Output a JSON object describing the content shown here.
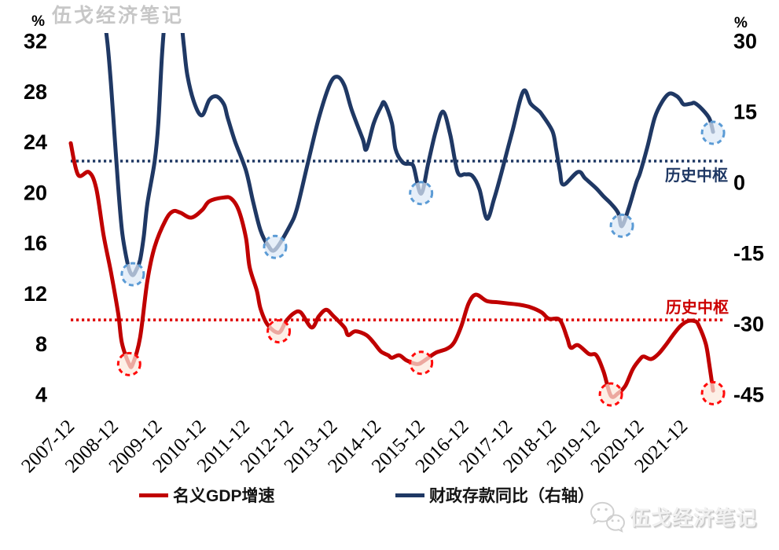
{
  "watermarks": {
    "top": "伍戈经济笔记",
    "bottom": "伍戈经济笔记"
  },
  "legend": [
    {
      "label": "名义GDP增速",
      "color": "#C00000"
    },
    {
      "label": "财政存款同比（右轴）",
      "color": "#1F3864"
    }
  ],
  "annotations": {
    "blue_center": {
      "label": "历史中枢",
      "axis": "right",
      "value": 4.5
    },
    "red_center": {
      "label": "历史中枢",
      "axis": "left",
      "value": 9.9
    }
  },
  "chart_data": {
    "type": "line",
    "title": "",
    "grid": "off",
    "x_axis": {
      "tick_labels": [
        "2007-12",
        "2008-12",
        "2009-12",
        "2010-12",
        "2011-12",
        "2012-12",
        "2013-12",
        "2014-12",
        "2015-12",
        "2016-12",
        "2017-12",
        "2018-12",
        "2019-12",
        "2020-12",
        "2021-12"
      ],
      "start": "2007-12",
      "end": "2022-08"
    },
    "left_axis": {
      "unit": "%",
      "ticks": [
        32,
        28,
        24,
        20,
        16,
        12,
        8,
        4
      ],
      "range": [
        4,
        32
      ]
    },
    "right_axis": {
      "unit": "%",
      "ticks": [
        30,
        15,
        0,
        -15,
        -30,
        -45
      ],
      "range": [
        -45,
        30
      ]
    },
    "center_lines": [
      {
        "label": "历史中枢",
        "axis": "right",
        "value": 4.5,
        "color": "#1F3864"
      },
      {
        "label": "历史中枢",
        "axis": "left",
        "value": 9.9,
        "color": "#E00000"
      }
    ],
    "series": [
      {
        "name": "名义GDP增速",
        "axis": "left",
        "color": "#C00000",
        "width": 5,
        "points": [
          [
            "2007-12",
            23.9
          ],
          [
            "2008-02",
            21.4
          ],
          [
            "2008-05",
            21.6
          ],
          [
            "2008-07",
            20.3
          ],
          [
            "2008-09",
            16.6
          ],
          [
            "2008-11",
            13.7
          ],
          [
            "2009-01",
            10.4
          ],
          [
            "2009-02",
            8.1
          ],
          [
            "2009-04",
            6.4
          ],
          [
            "2009-05",
            6.4
          ],
          [
            "2009-07",
            8.5
          ],
          [
            "2009-09",
            13.0
          ],
          [
            "2009-11",
            15.7
          ],
          [
            "2010-02",
            17.8
          ],
          [
            "2010-04",
            18.5
          ],
          [
            "2010-06",
            18.4
          ],
          [
            "2010-09",
            18.0
          ],
          [
            "2010-12",
            18.6
          ],
          [
            "2011-02",
            19.3
          ],
          [
            "2011-06",
            19.6
          ],
          [
            "2011-08",
            19.5
          ],
          [
            "2011-10",
            18.6
          ],
          [
            "2011-12",
            16.4
          ],
          [
            "2012-01",
            14.1
          ],
          [
            "2012-03",
            12.2
          ],
          [
            "2012-04",
            10.8
          ],
          [
            "2012-06",
            9.5
          ],
          [
            "2012-09",
            8.9
          ],
          [
            "2012-11",
            9.8
          ],
          [
            "2013-01",
            10.4
          ],
          [
            "2013-03",
            10.5
          ],
          [
            "2013-06",
            9.3
          ],
          [
            "2013-08",
            10.2
          ],
          [
            "2013-10",
            10.7
          ],
          [
            "2013-12",
            10.2
          ],
          [
            "2014-03",
            9.3
          ],
          [
            "2014-04",
            8.7
          ],
          [
            "2014-06",
            9.0
          ],
          [
            "2014-09",
            8.7
          ],
          [
            "2014-11",
            8.1
          ],
          [
            "2015-01",
            7.4
          ],
          [
            "2015-03",
            7.1
          ],
          [
            "2015-04",
            6.9
          ],
          [
            "2015-06",
            7.1
          ],
          [
            "2015-08",
            6.7
          ],
          [
            "2015-11",
            6.4
          ],
          [
            "2016-01",
            6.7
          ],
          [
            "2016-04",
            7.3
          ],
          [
            "2016-07",
            7.6
          ],
          [
            "2016-09",
            8.1
          ],
          [
            "2016-11",
            9.4
          ],
          [
            "2017-01",
            11.2
          ],
          [
            "2017-03",
            11.9
          ],
          [
            "2017-06",
            11.4
          ],
          [
            "2017-09",
            11.3
          ],
          [
            "2017-12",
            11.2
          ],
          [
            "2018-03",
            11.1
          ],
          [
            "2018-06",
            10.9
          ],
          [
            "2018-09",
            10.5
          ],
          [
            "2018-11",
            10.0
          ],
          [
            "2019-02",
            9.9
          ],
          [
            "2019-04",
            8.5
          ],
          [
            "2019-05",
            7.7
          ],
          [
            "2019-07",
            7.9
          ],
          [
            "2019-10",
            7.2
          ],
          [
            "2019-12",
            7.1
          ],
          [
            "2020-02",
            5.8
          ],
          [
            "2020-04",
            3.9
          ],
          [
            "2020-06",
            4.1
          ],
          [
            "2020-08",
            4.7
          ],
          [
            "2020-10",
            6.0
          ],
          [
            "2020-12",
            6.8
          ],
          [
            "2021-01",
            7.0
          ],
          [
            "2021-03",
            6.8
          ],
          [
            "2021-05",
            7.2
          ],
          [
            "2021-07",
            7.9
          ],
          [
            "2021-09",
            8.7
          ],
          [
            "2021-11",
            9.4
          ],
          [
            "2022-01",
            9.8
          ],
          [
            "2022-03",
            9.8
          ],
          [
            "2022-04",
            9.5
          ],
          [
            "2022-06",
            8.0
          ],
          [
            "2022-07",
            6.3
          ],
          [
            "2022-08",
            4.3
          ]
        ]
      },
      {
        "name": "财政存款同比（右轴）",
        "axis": "right",
        "color": "#1F3864",
        "width": 5,
        "points": [
          [
            "2007-12",
            40
          ],
          [
            "2008-06",
            38
          ],
          [
            "2008-09",
            34
          ],
          [
            "2008-10",
            30
          ],
          [
            "2008-11",
            21
          ],
          [
            "2008-12",
            10
          ],
          [
            "2009-01",
            -1
          ],
          [
            "2009-02",
            -10
          ],
          [
            "2009-03",
            -15
          ],
          [
            "2009-04",
            -18.5
          ],
          [
            "2009-05",
            -19.7
          ],
          [
            "2009-06",
            -18.5
          ],
          [
            "2009-07",
            -16.5
          ],
          [
            "2009-08",
            -11.5
          ],
          [
            "2009-09",
            -4.5
          ],
          [
            "2009-11",
            4.5
          ],
          [
            "2009-12",
            12.5
          ],
          [
            "2010-01",
            27
          ],
          [
            "2010-02",
            36
          ],
          [
            "2010-04",
            45
          ],
          [
            "2010-06",
            36
          ],
          [
            "2010-07",
            29
          ],
          [
            "2010-08",
            22.5
          ],
          [
            "2010-10",
            16.5
          ],
          [
            "2010-12",
            14.2
          ],
          [
            "2011-02",
            17.5
          ],
          [
            "2011-04",
            18.2
          ],
          [
            "2011-06",
            16.5
          ],
          [
            "2011-07",
            13.7
          ],
          [
            "2011-09",
            8.7
          ],
          [
            "2011-12",
            2.5
          ],
          [
            "2012-02",
            -4.2
          ],
          [
            "2012-04",
            -10.2
          ],
          [
            "2012-06",
            -13.3
          ],
          [
            "2012-08",
            -14.3
          ],
          [
            "2012-12",
            -9.3
          ],
          [
            "2013-02",
            -5.5
          ],
          [
            "2013-05",
            4.2
          ],
          [
            "2013-08",
            13.7
          ],
          [
            "2013-11",
            20.8
          ],
          [
            "2014-01",
            22.4
          ],
          [
            "2014-03",
            20.5
          ],
          [
            "2014-05",
            15.3
          ],
          [
            "2014-08",
            9.2
          ],
          [
            "2014-09",
            7.0
          ],
          [
            "2014-11",
            12.5
          ],
          [
            "2015-01",
            16.0
          ],
          [
            "2015-02",
            16.8
          ],
          [
            "2015-04",
            12.5
          ],
          [
            "2015-05",
            7.0
          ],
          [
            "2015-07",
            4.2
          ],
          [
            "2015-09",
            3.9
          ],
          [
            "2015-10",
            3.2
          ],
          [
            "2015-12",
            -2.4
          ],
          [
            "2016-02",
            4.2
          ],
          [
            "2016-04",
            10.8
          ],
          [
            "2016-06",
            15.0
          ],
          [
            "2016-08",
            10.0
          ],
          [
            "2016-10",
            2.2
          ],
          [
            "2016-12",
            1.7
          ],
          [
            "2017-02",
            1.4
          ],
          [
            "2017-04",
            -1.5
          ],
          [
            "2017-06",
            -7.7
          ],
          [
            "2017-08",
            -3.5
          ],
          [
            "2017-10",
            2.0
          ],
          [
            "2018-01",
            10.8
          ],
          [
            "2018-04",
            19.3
          ],
          [
            "2018-06",
            16.7
          ],
          [
            "2018-08",
            15.3
          ],
          [
            "2018-09",
            14.5
          ],
          [
            "2018-12",
            10.8
          ],
          [
            "2019-01",
            7.0
          ],
          [
            "2019-02",
            2.5
          ],
          [
            "2019-03",
            -0.5
          ],
          [
            "2019-07",
            2.2
          ],
          [
            "2019-09",
            0.8
          ],
          [
            "2019-12",
            -1.3
          ],
          [
            "2020-02",
            -3.0
          ],
          [
            "2020-04",
            -4.5
          ],
          [
            "2020-06",
            -6.5
          ],
          [
            "2020-07",
            -9.3
          ],
          [
            "2020-09",
            -5.2
          ],
          [
            "2020-11",
            0.0
          ],
          [
            "2020-12",
            2.0
          ],
          [
            "2021-02",
            7.5
          ],
          [
            "2021-04",
            13.7
          ],
          [
            "2021-06",
            17.0
          ],
          [
            "2021-08",
            18.8
          ],
          [
            "2021-10",
            18.3
          ],
          [
            "2021-11",
            17.5
          ],
          [
            "2021-12",
            16.5
          ],
          [
            "2022-02",
            16.7
          ],
          [
            "2022-03",
            16.8
          ],
          [
            "2022-05",
            15.5
          ],
          [
            "2022-07",
            13.5
          ],
          [
            "2022-08",
            10.7
          ]
        ]
      }
    ],
    "highlight_circles": [
      {
        "series": "名义GDP增速",
        "axis": "left",
        "date": "2009-04",
        "value": 6.4,
        "stroke": "#FF0A0A",
        "fill": "#FCE9DC"
      },
      {
        "series": "名义GDP增速",
        "axis": "left",
        "date": "2012-09",
        "value": 9.0,
        "stroke": "#FF0A0A",
        "fill": "#FCE9DC"
      },
      {
        "series": "名义GDP增速",
        "axis": "left",
        "date": "2015-12",
        "value": 6.5,
        "stroke": "#FF0A0A",
        "fill": "#FCE9DC"
      },
      {
        "series": "名义GDP增速",
        "axis": "left",
        "date": "2020-04",
        "value": 4.0,
        "stroke": "#FF0A0A",
        "fill": "#FCE9DC"
      },
      {
        "series": "名义GDP增速",
        "axis": "left",
        "date": "2022-08",
        "value": 4.1,
        "stroke": "#FF0A0A",
        "fill": "#FCE9DC"
      },
      {
        "series": "财政存款同比（右轴）",
        "axis": "right",
        "date": "2009-05",
        "value": -19.5,
        "stroke": "#5B9BD5",
        "fill": "#DCE9F7"
      },
      {
        "series": "财政存款同比（右轴）",
        "axis": "right",
        "date": "2012-08",
        "value": -13.7,
        "stroke": "#5B9BD5",
        "fill": "#DCE9F7"
      },
      {
        "series": "财政存款同比（右轴）",
        "axis": "right",
        "date": "2015-12",
        "value": -2.3,
        "stroke": "#5B9BD5",
        "fill": "#DCE9F7"
      },
      {
        "series": "财政存款同比（右轴）",
        "axis": "right",
        "date": "2020-07",
        "value": -9.2,
        "stroke": "#5B9BD5",
        "fill": "#DCE9F7"
      },
      {
        "series": "财政存款同比（右轴）",
        "axis": "right",
        "date": "2022-08",
        "value": 10.5,
        "stroke": "#5B9BD5",
        "fill": "#DCE9F7"
      }
    ]
  }
}
